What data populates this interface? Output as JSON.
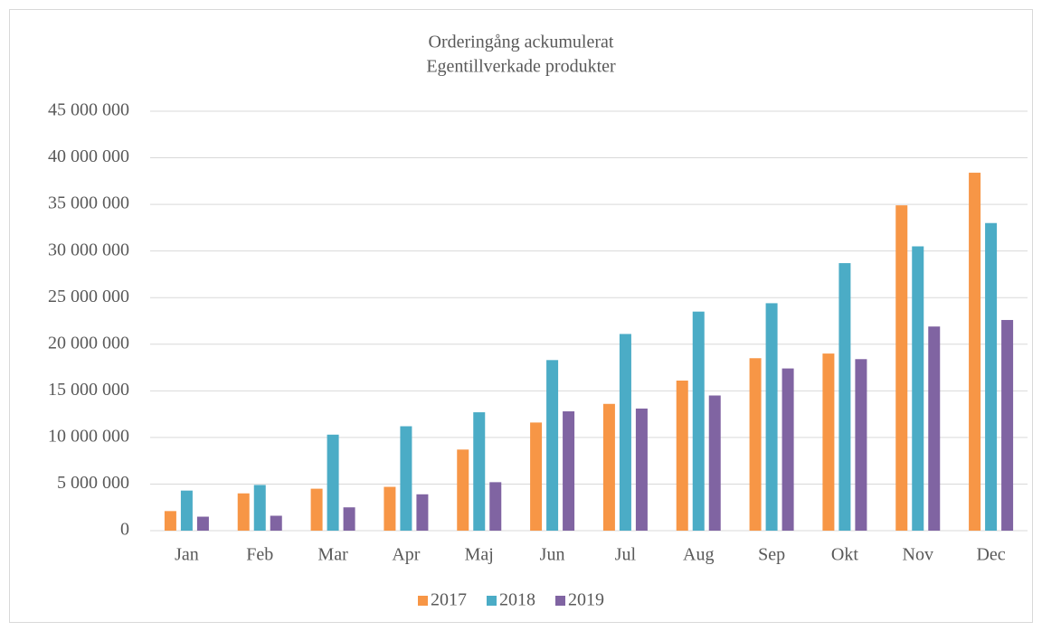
{
  "chart_data": {
    "type": "bar",
    "title": [
      "Orderingång ackumulerat",
      "Egentillverkade produkter"
    ],
    "categories": [
      "Jan",
      "Feb",
      "Mar",
      "Apr",
      "Maj",
      "Jun",
      "Jul",
      "Aug",
      "Sep",
      "Okt",
      "Nov",
      "Dec"
    ],
    "series": [
      {
        "name": "2017",
        "color": "#f79646",
        "values": [
          2100000,
          4000000,
          4500000,
          4700000,
          8700000,
          11600000,
          13600000,
          16100000,
          18500000,
          19000000,
          34900000,
          38400000
        ]
      },
      {
        "name": "2018",
        "color": "#4bacc6",
        "values": [
          4300000,
          4900000,
          10300000,
          11200000,
          12700000,
          18300000,
          21100000,
          23500000,
          24400000,
          28700000,
          30500000,
          33000000
        ]
      },
      {
        "name": "2019",
        "color": "#8064a2",
        "values": [
          1500000,
          1600000,
          2500000,
          3900000,
          5200000,
          12800000,
          13100000,
          14500000,
          17400000,
          18400000,
          21900000,
          22600000
        ]
      }
    ],
    "ylim": [
      0,
      45000000
    ],
    "yticks": [
      0,
      {
        "value": 5000000,
        "label": "5 000 000"
      },
      {
        "value": 10000000,
        "label": "10 000 000"
      },
      {
        "value": 15000000,
        "label": "15 000 000"
      },
      {
        "value": 20000000,
        "label": "20 000 000"
      },
      {
        "value": 25000000,
        "label": "25 000 000"
      },
      {
        "value": 30000000,
        "label": "30 000 000"
      },
      {
        "value": 35000000,
        "label": "35 000 000"
      },
      {
        "value": 40000000,
        "label": "40 000 000"
      },
      {
        "value": 45000000,
        "label": "45 000 000"
      }
    ],
    "grid": true,
    "legend": "bottom"
  }
}
